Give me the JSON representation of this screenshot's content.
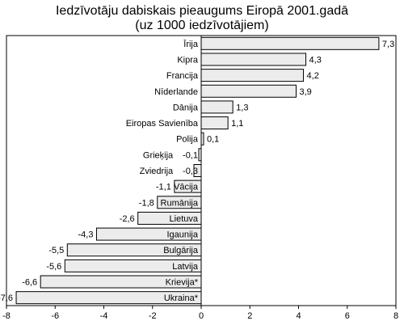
{
  "chart_data": {
    "type": "bar",
    "orientation": "horizontal",
    "title": "Iedzīvotāju dabiskais pieaugums Eiropā 2001.gadā",
    "subtitle": "(uz 1000 iedzīvotājiem)",
    "xlim": [
      -8,
      8
    ],
    "xticks": [
      -8,
      -6,
      -4,
      -2,
      0,
      2,
      4,
      6,
      8
    ],
    "grid": false,
    "categories": [
      "Īrija",
      "Kipra",
      "Francija",
      "Nīderlande",
      "Dānija",
      "Eiropas Savienība",
      "Polija",
      "Grieķija",
      "Zviedrija",
      "Vācija",
      "Rumānija",
      "Lietuva",
      "Igaunija",
      "Bulgārija",
      "Latvija",
      "Krievija*",
      "Ukraina*"
    ],
    "value_labels": [
      "7,3",
      "4,3",
      "4,2",
      "3,9",
      "1,3",
      "1,1",
      "0,1",
      "-0,1",
      "-0,3",
      "-1,1",
      "-1,8",
      "-2,6",
      "-4,3",
      "-5,5",
      "-5,6",
      "-6,6",
      "-7,6"
    ],
    "values": [
      7.3,
      4.3,
      4.2,
      3.9,
      1.3,
      1.1,
      0.1,
      -0.1,
      -0.3,
      -1.1,
      -1.8,
      -2.6,
      -4.3,
      -5.5,
      -5.6,
      -6.6,
      -7.6
    ]
  }
}
